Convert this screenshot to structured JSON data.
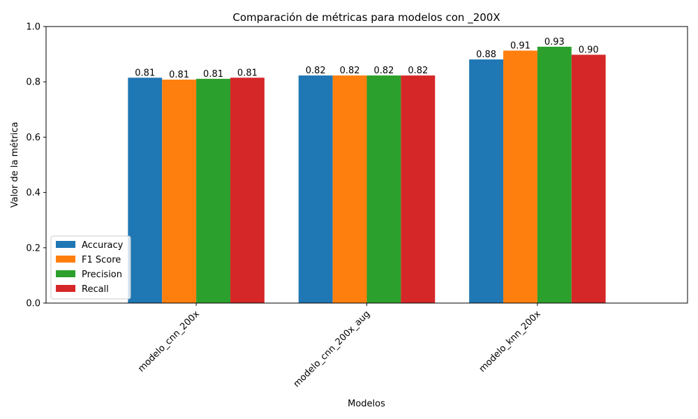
{
  "chart_data": {
    "type": "bar",
    "title": "Comparación de métricas para modelos con _200X",
    "xlabel": "Modelos",
    "ylabel": "Valor de la métrica",
    "ylim": [
      0,
      1.0
    ],
    "yticks": [
      "0.0",
      "0.2",
      "0.4",
      "0.6",
      "0.8",
      "1.0"
    ],
    "categories": [
      "modelo_cnn_200x",
      "modelo_cnn_200x_aug",
      "modelo_knn_200x"
    ],
    "series": [
      {
        "name": "Accuracy",
        "color": "#1f77b4",
        "values": [
          0.815,
          0.823,
          0.881
        ],
        "labels": [
          "0.81",
          "0.82",
          "0.88"
        ]
      },
      {
        "name": "F1 Score",
        "color": "#ff7f0e",
        "values": [
          0.808,
          0.823,
          0.913
        ],
        "labels": [
          "0.81",
          "0.82",
          "0.91"
        ]
      },
      {
        "name": "Precision",
        "color": "#2ca02c",
        "values": [
          0.811,
          0.823,
          0.927
        ],
        "labels": [
          "0.81",
          "0.82",
          "0.93"
        ]
      },
      {
        "name": "Recall",
        "color": "#d62728",
        "values": [
          0.815,
          0.823,
          0.898
        ],
        "labels": [
          "0.81",
          "0.82",
          "0.90"
        ]
      }
    ],
    "legend": "lower-left",
    "grid": false
  }
}
